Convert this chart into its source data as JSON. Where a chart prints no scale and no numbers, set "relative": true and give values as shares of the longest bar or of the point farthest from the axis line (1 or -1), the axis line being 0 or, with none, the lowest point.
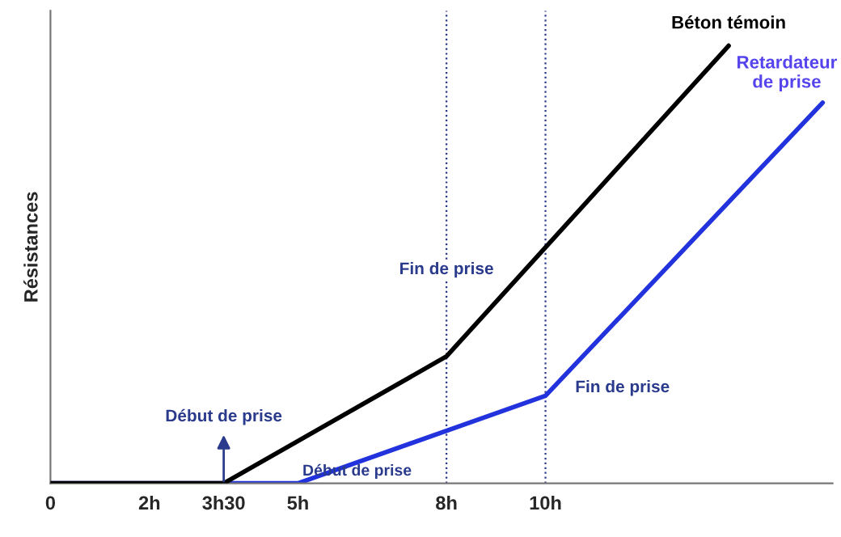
{
  "chart_data": {
    "type": "line",
    "ylabel": "Résistances",
    "relative": true,
    "tick_labels": "x",
    "xlim": [
      0,
      15.8
    ],
    "xticks": [
      {
        "value": 0,
        "label": "0"
      },
      {
        "value": 2,
        "label": "2h"
      },
      {
        "value": 3.5,
        "label": "3h30"
      },
      {
        "value": 5,
        "label": "5h"
      },
      {
        "value": 8,
        "label": "8h"
      },
      {
        "value": 10,
        "label": "10h"
      }
    ],
    "series": [
      {
        "name": "Béton témoin",
        "color": "#000000",
        "x": [
          0,
          3.5,
          8,
          13.7
        ],
        "values": [
          0,
          0,
          0.29,
          1
        ]
      },
      {
        "name": "Retardateur de prise",
        "color": "#2233dd",
        "x": [
          0,
          5,
          10,
          15.6
        ],
        "values": [
          0,
          0,
          0.2,
          0.87
        ]
      }
    ],
    "annotations": [
      {
        "text": "Début de prise",
        "x": 3.5,
        "y": 0
      },
      {
        "text": "Début de prise",
        "x": 5,
        "y": 0
      }
    ],
    "ref_lines": [
      {
        "axis": "x",
        "value": 8,
        "label": "Fin de prise",
        "color": "#2a3a8c",
        "line_style": "dotted"
      },
      {
        "axis": "x",
        "value": 10,
        "label": "Fin de prise",
        "color": "#2a3a8c",
        "line_style": "dotted"
      }
    ],
    "grid": false,
    "legend": false,
    "marker": "none",
    "line_style": "solid"
  }
}
